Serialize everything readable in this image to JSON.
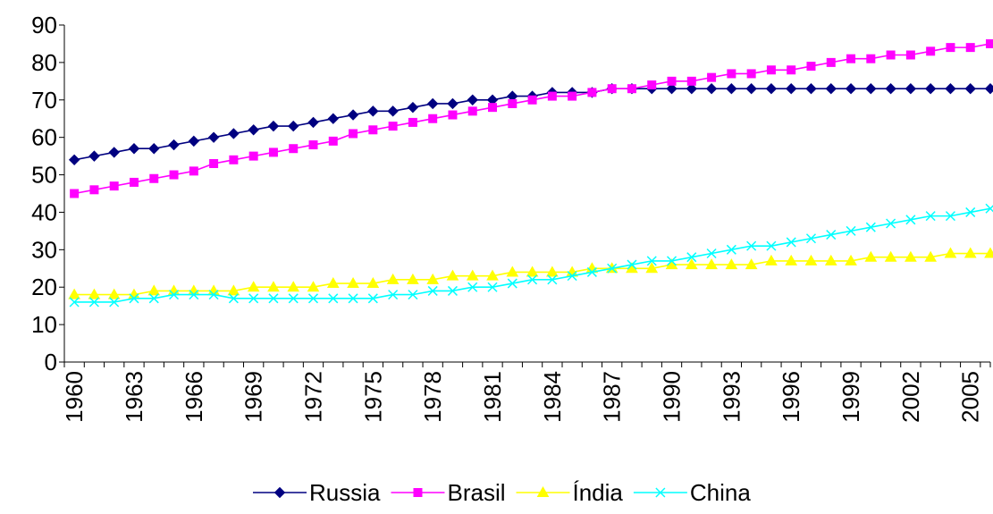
{
  "chart_data": {
    "type": "line",
    "title": "",
    "xlabel": "",
    "ylabel": "",
    "ylim": [
      0,
      90
    ],
    "yticks": [
      0,
      10,
      20,
      30,
      40,
      50,
      60,
      70,
      80,
      90
    ],
    "xlim": [
      1960,
      2006
    ],
    "xtick_labels": [
      "1960",
      "1963",
      "1966",
      "1969",
      "1972",
      "1975",
      "1978",
      "1981",
      "1984",
      "1987",
      "1990",
      "1993",
      "1996",
      "1999",
      "2002",
      "2005"
    ],
    "grid": false,
    "legend_position": "bottom",
    "x": [
      1960,
      1961,
      1962,
      1963,
      1964,
      1965,
      1966,
      1967,
      1968,
      1969,
      1970,
      1971,
      1972,
      1973,
      1974,
      1975,
      1976,
      1977,
      1978,
      1979,
      1980,
      1981,
      1982,
      1983,
      1984,
      1985,
      1986,
      1987,
      1988,
      1989,
      1990,
      1991,
      1992,
      1993,
      1994,
      1995,
      1996,
      1997,
      1998,
      1999,
      2000,
      2001,
      2002,
      2003,
      2004,
      2005,
      2006
    ],
    "series": [
      {
        "name": "Russia",
        "color": "#000080",
        "marker": "diamond",
        "values": [
          54,
          55,
          56,
          57,
          57,
          58,
          59,
          60,
          61,
          62,
          63,
          63,
          64,
          65,
          66,
          67,
          67,
          68,
          69,
          69,
          70,
          70,
          71,
          71,
          72,
          72,
          72,
          73,
          73,
          73,
          73,
          73,
          73,
          73,
          73,
          73,
          73,
          73,
          73,
          73,
          73,
          73,
          73,
          73,
          73,
          73,
          73
        ]
      },
      {
        "name": "Brasil",
        "color": "#FF00FF",
        "marker": "square",
        "values": [
          45,
          46,
          47,
          48,
          49,
          50,
          51,
          53,
          54,
          55,
          56,
          57,
          58,
          59,
          61,
          62,
          63,
          64,
          65,
          66,
          67,
          68,
          69,
          70,
          71,
          71,
          72,
          73,
          73,
          74,
          75,
          75,
          76,
          77,
          77,
          78,
          78,
          79,
          80,
          81,
          81,
          82,
          82,
          83,
          84,
          84,
          85
        ]
      },
      {
        "name": "Índia",
        "color": "#FFFF00",
        "marker": "triangle",
        "values": [
          18,
          18,
          18,
          18,
          19,
          19,
          19,
          19,
          19,
          20,
          20,
          20,
          20,
          21,
          21,
          21,
          22,
          22,
          22,
          23,
          23,
          23,
          24,
          24,
          24,
          24,
          25,
          25,
          25,
          25,
          26,
          26,
          26,
          26,
          26,
          27,
          27,
          27,
          27,
          27,
          28,
          28,
          28,
          28,
          29,
          29,
          29
        ]
      },
      {
        "name": "China",
        "color": "#00FFFF",
        "marker": "x",
        "values": [
          16,
          16,
          16,
          17,
          17,
          18,
          18,
          18,
          17,
          17,
          17,
          17,
          17,
          17,
          17,
          17,
          18,
          18,
          19,
          19,
          20,
          20,
          21,
          22,
          22,
          23,
          24,
          25,
          26,
          27,
          27,
          28,
          29,
          30,
          31,
          31,
          32,
          33,
          34,
          35,
          36,
          37,
          38,
          39,
          39,
          40,
          41
        ]
      }
    ]
  }
}
